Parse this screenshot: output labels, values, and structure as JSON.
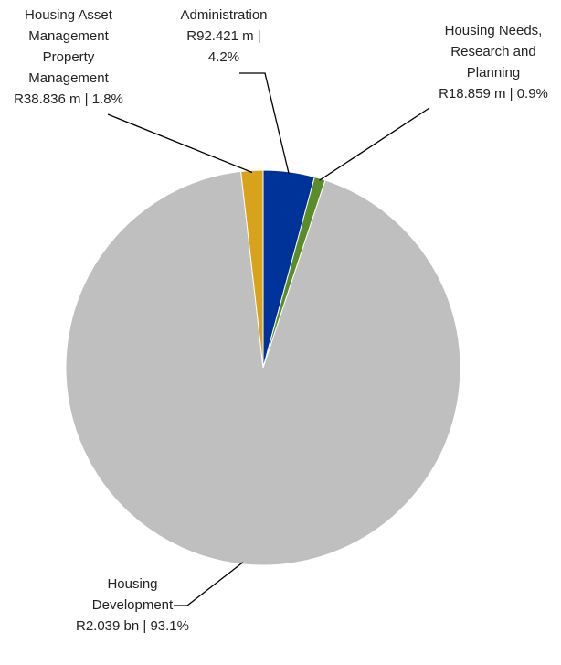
{
  "chart_data": {
    "type": "pie",
    "categories": [
      "Administration",
      "Housing Needs, Research and Planning",
      "Housing Development",
      "Housing Asset Management Property Management"
    ],
    "values": [
      4.2,
      0.9,
      93.1,
      1.8
    ],
    "value_labels": [
      "R92.421 m | 4.2%",
      "R18.859 m | 0.9%",
      "R2.039 bn | 93.1%",
      "R38.836 m | 1.8%"
    ],
    "colors": [
      "#003399",
      "#5b8c2a",
      "#bfbfbf",
      "#d9a21b"
    ]
  }
}
